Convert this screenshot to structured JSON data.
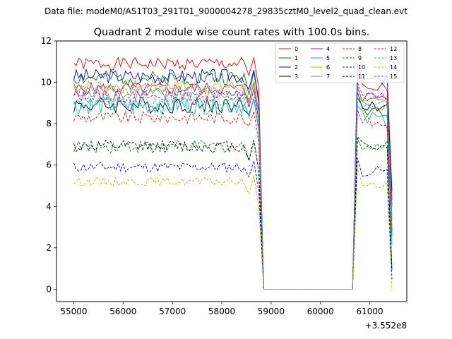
{
  "chart_data": {
    "type": "line",
    "suptitle": "Data file: modeM0/AS1T03_291T01_9000004278_29835cztM0_level2_quad_clean.evt",
    "title": "Quadrant 2 module wise count rates with 100.0s bins.",
    "xlabel": "",
    "ylabel": "",
    "x_offset_label": "+3.552e8",
    "xlim": [
      54650,
      61750
    ],
    "ylim": [
      -0.6,
      12
    ],
    "xticks": [
      55000,
      56000,
      57000,
      58000,
      59000,
      60000,
      61000
    ],
    "yticks": [
      0,
      2,
      4,
      6,
      8,
      10,
      12
    ],
    "legend_position": "top-right",
    "gap": {
      "start": 58850,
      "end": 60650
    },
    "series": [
      {
        "name": "0",
        "color": "#ff0000",
        "dashed": false,
        "base": 10.9,
        "amp": 0.3,
        "tail": 9.7,
        "seed": 1
      },
      {
        "name": "1",
        "color": "#008000",
        "dashed": false,
        "base": 10.2,
        "amp": 0.35,
        "tail": 8.7,
        "seed": 2
      },
      {
        "name": "2",
        "color": "#0000ff",
        "dashed": false,
        "base": 10.3,
        "amp": 0.35,
        "tail": 10.1,
        "seed": 3
      },
      {
        "name": "3",
        "color": "#000000",
        "dashed": false,
        "base": 8.9,
        "amp": 0.4,
        "tail": 8.9,
        "seed": 4
      },
      {
        "name": "4",
        "color": "#bf00bf",
        "dashed": false,
        "base": 9.7,
        "amp": 0.3,
        "tail": 9.3,
        "seed": 5
      },
      {
        "name": "5",
        "color": "#00bfbf",
        "dashed": false,
        "base": 8.9,
        "amp": 0.45,
        "tail": 8.2,
        "seed": 6
      },
      {
        "name": "6",
        "color": "#bfbf00",
        "dashed": false,
        "base": 9.8,
        "amp": 0.35,
        "tail": 8.9,
        "seed": 7
      },
      {
        "name": "7",
        "color": "#808080",
        "dashed": false,
        "base": 9.4,
        "amp": 0.35,
        "tail": 9.0,
        "seed": 8
      },
      {
        "name": "8",
        "color": "#ff0000",
        "dashed": true,
        "base": 8.3,
        "amp": 0.3,
        "tail": 8.1,
        "seed": 9
      },
      {
        "name": "9",
        "color": "#008000",
        "dashed": true,
        "base": 6.9,
        "amp": 0.3,
        "tail": 6.9,
        "seed": 10
      },
      {
        "name": "10",
        "color": "#0000ff",
        "dashed": true,
        "base": 5.9,
        "amp": 0.25,
        "tail": 5.7,
        "seed": 11
      },
      {
        "name": "11",
        "color": "#000000",
        "dashed": true,
        "base": 6.9,
        "amp": 0.3,
        "tail": 6.9,
        "seed": 12
      },
      {
        "name": "12",
        "color": "#bf00bf",
        "dashed": true,
        "base": 9.3,
        "amp": 0.3,
        "tail": 9.3,
        "seed": 13
      },
      {
        "name": "13",
        "color": "#00bfbf",
        "dashed": true,
        "base": 9.0,
        "amp": 0.3,
        "tail": 8.8,
        "seed": 14
      },
      {
        "name": "14",
        "color": "#bfbf00",
        "dashed": true,
        "base": 5.2,
        "amp": 0.2,
        "tail": 5.1,
        "seed": 15
      },
      {
        "name": "15",
        "color": "#808080",
        "dashed": true,
        "base": 9.6,
        "amp": 0.3,
        "tail": 9.3,
        "seed": 16
      }
    ]
  }
}
